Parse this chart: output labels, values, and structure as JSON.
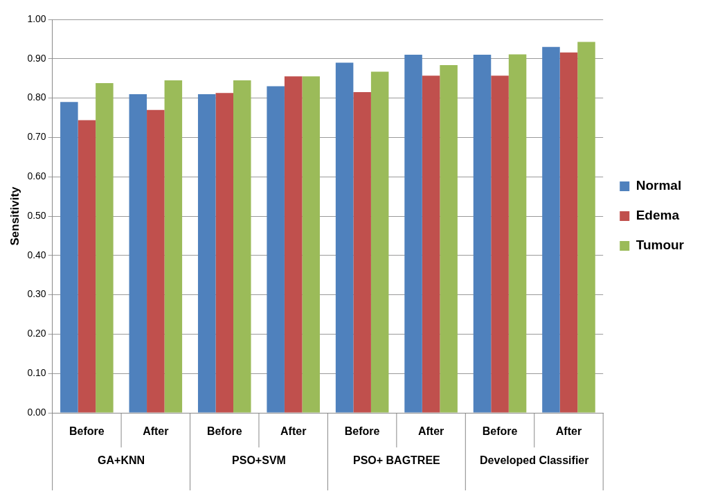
{
  "chart_data": {
    "type": "bar",
    "ylabel": "Sensitivity",
    "categories": [
      "Before",
      "After",
      "Before",
      "After",
      "Before",
      "After",
      "Before",
      "After"
    ],
    "series": [
      {
        "name": "Normal",
        "color": "#4f81bd",
        "values": [
          0.79,
          0.81,
          0.81,
          0.83,
          0.89,
          0.91,
          0.91,
          0.93
        ]
      },
      {
        "name": "Edema",
        "color": "#c0504d",
        "values": [
          0.744,
          0.77,
          0.813,
          0.855,
          0.815,
          0.857,
          0.857,
          0.916
        ]
      },
      {
        "name": "Tumour",
        "color": "#9bbb59",
        "values": [
          0.838,
          0.845,
          0.845,
          0.855,
          0.867,
          0.884,
          0.911,
          0.943
        ]
      }
    ],
    "annotations": [
      "GA+KNN",
      "PSO+SVM",
      "PSO+ BAGTREE",
      "Developed Classifier"
    ],
    "ylim": [
      0,
      1
    ],
    "yticks": [
      {
        "value": 0,
        "label": "0.00"
      },
      {
        "value": 0.1,
        "label": "0.10"
      },
      {
        "value": 0.2,
        "label": "0.20"
      },
      {
        "value": 0.3,
        "label": "0.30"
      },
      {
        "value": 0.4,
        "label": "0.40"
      },
      {
        "value": 0.5,
        "label": "0.50"
      },
      {
        "value": 0.6,
        "label": "0.60"
      },
      {
        "value": 0.7,
        "label": "0.70"
      },
      {
        "value": 0.8,
        "label": "0.80"
      },
      {
        "value": 0.9,
        "label": "0.90"
      },
      {
        "value": 1,
        "label": "1.00"
      }
    ],
    "grid": "y",
    "legend": "right"
  }
}
